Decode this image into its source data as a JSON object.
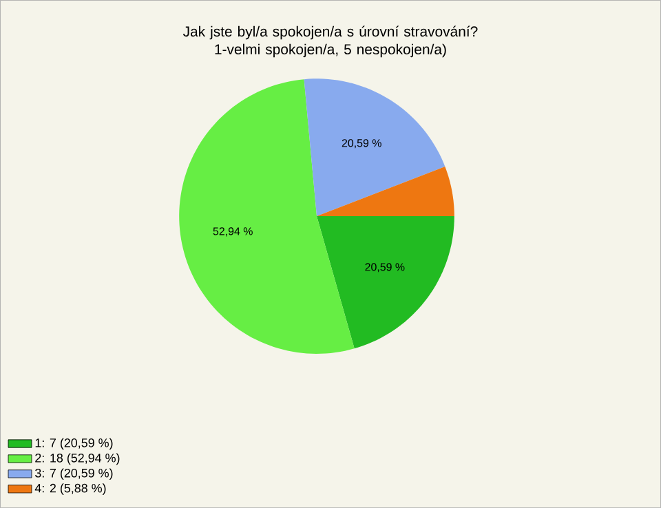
{
  "chart_data": {
    "type": "pie",
    "title": "Jak jste byl/a spokojen/a s úrovní stravování? 1-velmi spokojen/a, 5 nespokojen/a)",
    "categories": [
      "1: 7 (20,59 %)",
      "2: 18 (52,94 %)",
      "3: 7 (20,59 %)",
      "4: 2 (5,88 %)"
    ],
    "values": [
      20.59,
      52.94,
      20.59,
      5.88
    ],
    "value_labels": [
      "20,59 %",
      "52,94 %",
      "20,59 %",
      null
    ],
    "colors": [
      "#22bb22",
      "#66ee44",
      "#88aaee",
      "#ee7711"
    ],
    "legend": "bottom left"
  }
}
